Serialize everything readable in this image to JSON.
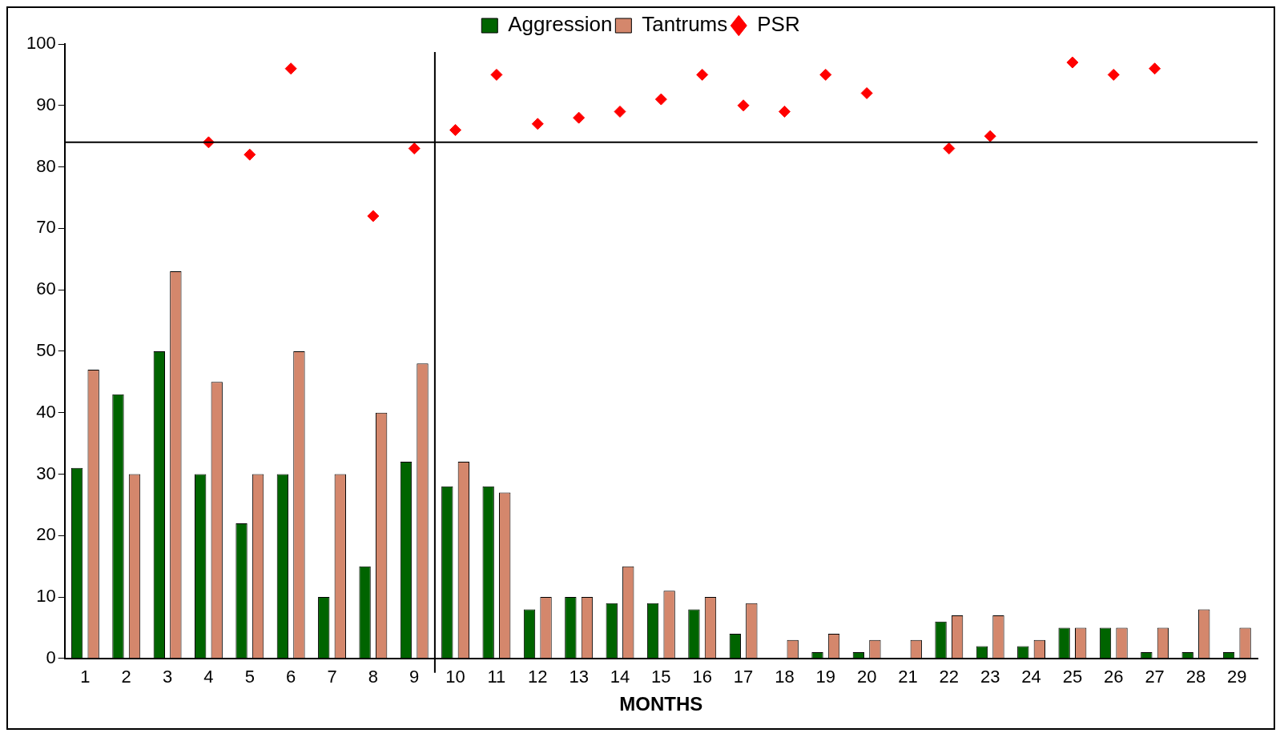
{
  "chart_data": {
    "type": "bar",
    "xlabel": "MONTHS",
    "x": [
      1,
      2,
      3,
      4,
      5,
      6,
      7,
      8,
      9,
      10,
      11,
      12,
      13,
      14,
      15,
      16,
      17,
      18,
      19,
      20,
      21,
      22,
      23,
      24,
      25,
      26,
      27,
      28,
      29
    ],
    "xlim": [
      0.5,
      29.5
    ],
    "xticks": [
      1,
      2,
      3,
      4,
      5,
      6,
      7,
      8,
      9,
      10,
      11,
      12,
      13,
      14,
      15,
      16,
      17,
      18,
      19,
      20,
      21,
      22,
      23,
      24,
      25,
      26,
      27,
      28,
      29
    ],
    "ylim": [
      0,
      100
    ],
    "yticks": [
      0,
      10,
      20,
      30,
      40,
      50,
      60,
      70,
      80,
      90,
      100
    ],
    "series": [
      {
        "name": "Aggression",
        "color": "#006400",
        "values": [
          31,
          43,
          50,
          30,
          22,
          30,
          10,
          15,
          32,
          28,
          28,
          8,
          10,
          9,
          9,
          8,
          4,
          0,
          1,
          1,
          0,
          6,
          2,
          2,
          5,
          5,
          1,
          1,
          1
        ]
      },
      {
        "name": "Tantrums",
        "color": "#d4876c",
        "values": [
          47,
          30,
          63,
          45,
          30,
          50,
          30,
          40,
          48,
          32,
          27,
          10,
          10,
          15,
          11,
          10,
          9,
          3,
          4,
          3,
          3,
          7,
          7,
          3,
          5,
          5,
          5,
          8,
          5
        ]
      },
      {
        "name": "PSR",
        "type": "scatter",
        "color": "#ff0000",
        "marker": "diamond",
        "values": [
          null,
          null,
          null,
          84,
          82,
          96,
          null,
          72,
          83,
          86,
          95,
          87,
          88,
          89,
          91,
          95,
          90,
          89,
          95,
          92,
          null,
          83,
          85,
          null,
          97,
          95,
          96,
          null,
          null
        ]
      }
    ],
    "ref_lines": [
      {
        "axis": "y",
        "value": 84,
        "color": "#000000"
      },
      {
        "axis": "x",
        "value": 9.5,
        "color": "#000000"
      }
    ],
    "legend": "top",
    "grid": false
  }
}
